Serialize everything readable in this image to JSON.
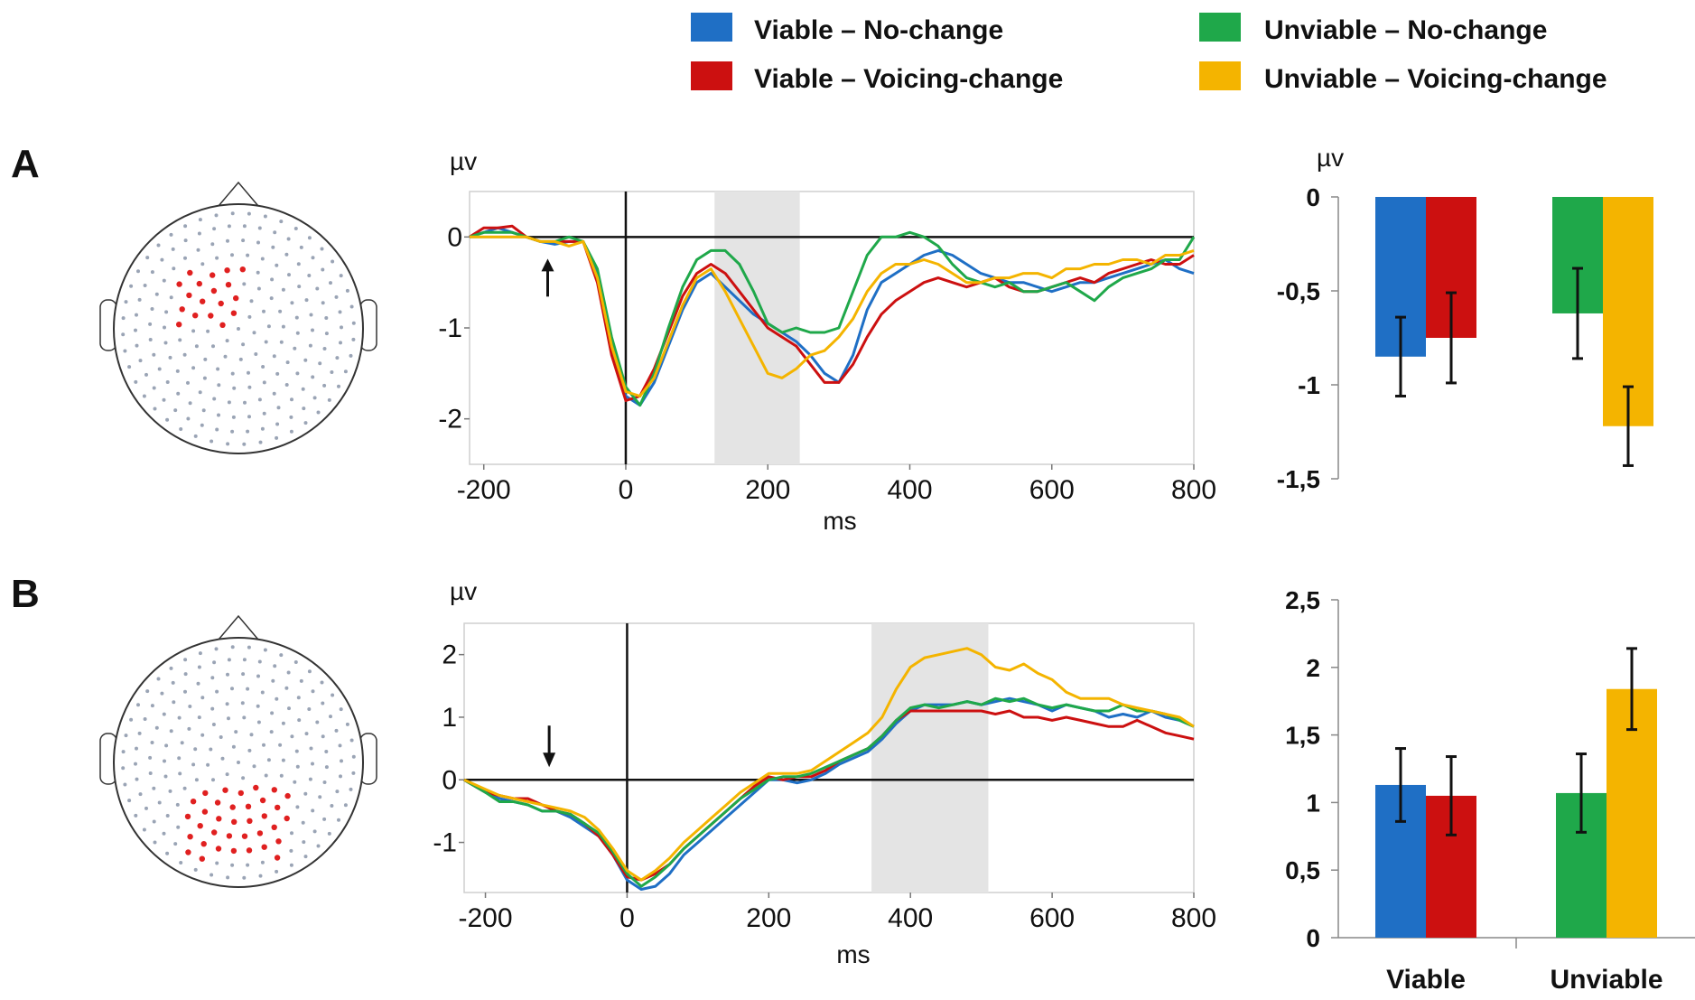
{
  "legend": [
    {
      "label": "Viable – No-change",
      "color": "#1f6fc5"
    },
    {
      "label": "Viable – Voicing-change",
      "color": "#cc1010"
    },
    {
      "label": "Unviable – No-change",
      "color": "#1fa84a"
    },
    {
      "label": "Unviable – Voicing-change",
      "color": "#f4b400"
    }
  ],
  "panels": [
    {
      "letter": "A",
      "wave_unit": "µv",
      "wave_xlabel": "ms",
      "bar_unit": "µv"
    },
    {
      "letter": "B",
      "wave_unit": "µv",
      "wave_xlabel": "ms",
      "bar_unit": ""
    }
  ],
  "chart_data": [
    {
      "id": "A-waveform",
      "type": "line",
      "xlabel": "ms",
      "ylabel": "µv",
      "xlim": [
        -220,
        800
      ],
      "ylim": [
        -2.5,
        0.5
      ],
      "xticks": [
        -200,
        0,
        200,
        400,
        600,
        800
      ],
      "yticks": [
        {
          "v": 0,
          "t": "0"
        },
        {
          "v": -1,
          "t": "-1"
        },
        {
          "v": -2,
          "t": "-2"
        }
      ],
      "shaded_window": [
        125,
        245
      ],
      "arrow": {
        "x": -110,
        "direction": "up"
      },
      "x": [
        -220,
        -200,
        -180,
        -160,
        -140,
        -120,
        -100,
        -80,
        -60,
        -40,
        -20,
        0,
        20,
        40,
        60,
        80,
        100,
        120,
        140,
        160,
        180,
        200,
        220,
        240,
        260,
        280,
        300,
        320,
        340,
        360,
        380,
        400,
        420,
        440,
        460,
        480,
        500,
        520,
        540,
        560,
        580,
        600,
        620,
        640,
        660,
        680,
        700,
        720,
        740,
        760,
        780,
        800
      ],
      "series": [
        {
          "name": "Viable – No-change",
          "color": "#1f6fc5",
          "values": [
            0,
            0.05,
            0.1,
            0.05,
            0,
            -0.05,
            -0.08,
            -0.05,
            -0.05,
            -0.4,
            -1.2,
            -1.75,
            -1.85,
            -1.6,
            -1.2,
            -0.8,
            -0.5,
            -0.4,
            -0.55,
            -0.7,
            -0.85,
            -0.95,
            -1.05,
            -1.15,
            -1.3,
            -1.5,
            -1.6,
            -1.3,
            -0.8,
            -0.5,
            -0.4,
            -0.3,
            -0.2,
            -0.15,
            -0.2,
            -0.3,
            -0.4,
            -0.45,
            -0.5,
            -0.5,
            -0.55,
            -0.6,
            -0.55,
            -0.5,
            -0.5,
            -0.45,
            -0.4,
            -0.35,
            -0.3,
            -0.25,
            -0.35,
            -0.4
          ]
        },
        {
          "name": "Viable – Voicing-change",
          "color": "#cc1010",
          "values": [
            0,
            0.1,
            0.1,
            0.12,
            0,
            -0.05,
            -0.05,
            -0.05,
            -0.05,
            -0.5,
            -1.3,
            -1.8,
            -1.75,
            -1.45,
            -1.05,
            -0.65,
            -0.4,
            -0.3,
            -0.4,
            -0.6,
            -0.8,
            -1.0,
            -1.1,
            -1.2,
            -1.4,
            -1.6,
            -1.6,
            -1.4,
            -1.1,
            -0.85,
            -0.7,
            -0.6,
            -0.5,
            -0.45,
            -0.5,
            -0.55,
            -0.5,
            -0.45,
            -0.55,
            -0.6,
            -0.6,
            -0.55,
            -0.5,
            -0.45,
            -0.5,
            -0.4,
            -0.35,
            -0.3,
            -0.25,
            -0.3,
            -0.3,
            -0.2
          ]
        },
        {
          "name": "Unviable – No-change",
          "color": "#1fa84a",
          "values": [
            0,
            0.05,
            0.05,
            0.05,
            0,
            -0.05,
            -0.05,
            0,
            -0.05,
            -0.35,
            -1.1,
            -1.65,
            -1.85,
            -1.5,
            -1.0,
            -0.55,
            -0.25,
            -0.15,
            -0.15,
            -0.3,
            -0.6,
            -0.95,
            -1.05,
            -1.0,
            -1.05,
            -1.05,
            -1.0,
            -0.6,
            -0.2,
            0,
            0,
            0.05,
            0,
            -0.1,
            -0.3,
            -0.45,
            -0.5,
            -0.55,
            -0.5,
            -0.6,
            -0.6,
            -0.55,
            -0.5,
            -0.6,
            -0.7,
            -0.55,
            -0.45,
            -0.4,
            -0.35,
            -0.25,
            -0.25,
            0
          ]
        },
        {
          "name": "Unviable – Voicing-change",
          "color": "#f4b400",
          "values": [
            0,
            0,
            0,
            0,
            0,
            -0.05,
            -0.05,
            -0.1,
            -0.05,
            -0.45,
            -1.2,
            -1.7,
            -1.75,
            -1.55,
            -1.15,
            -0.75,
            -0.45,
            -0.35,
            -0.6,
            -0.9,
            -1.2,
            -1.5,
            -1.55,
            -1.45,
            -1.3,
            -1.25,
            -1.1,
            -0.9,
            -0.6,
            -0.4,
            -0.3,
            -0.3,
            -0.25,
            -0.3,
            -0.4,
            -0.5,
            -0.5,
            -0.45,
            -0.45,
            -0.4,
            -0.4,
            -0.45,
            -0.35,
            -0.35,
            -0.3,
            -0.3,
            -0.25,
            -0.25,
            -0.3,
            -0.2,
            -0.2,
            -0.15
          ]
        }
      ]
    },
    {
      "id": "A-bars",
      "type": "bar",
      "ylabel": "µv",
      "ylim": [
        -1.5,
        0
      ],
      "yticks": [
        {
          "v": 0,
          "t": "0"
        },
        {
          "v": -0.5,
          "t": "-0,5"
        },
        {
          "v": -1,
          "t": "-1"
        },
        {
          "v": -1.5,
          "t": "-1,5"
        }
      ],
      "groups": [
        "Viable",
        "Unviable"
      ],
      "show_group_labels": false,
      "bars": [
        {
          "group": 0,
          "series": "Viable – No-change",
          "color": "#1f6fc5",
          "value": -0.85,
          "err": 0.21
        },
        {
          "group": 0,
          "series": "Viable – Voicing-change",
          "color": "#cc1010",
          "value": -0.75,
          "err": 0.24
        },
        {
          "group": 1,
          "series": "Unviable – No-change",
          "color": "#1fa84a",
          "value": -0.62,
          "err": 0.24
        },
        {
          "group": 1,
          "series": "Unviable – Voicing-change",
          "color": "#f4b400",
          "value": -1.22,
          "err": 0.21
        }
      ]
    },
    {
      "id": "B-waveform",
      "type": "line",
      "xlabel": "ms",
      "ylabel": "µv",
      "xlim": [
        -230,
        800
      ],
      "ylim": [
        -1.8,
        2.5
      ],
      "xticks": [
        -200,
        0,
        200,
        400,
        600,
        800
      ],
      "yticks": [
        {
          "v": 2,
          "t": "2"
        },
        {
          "v": 1,
          "t": "1"
        },
        {
          "v": 0,
          "t": "0"
        },
        {
          "v": -1,
          "t": "-1"
        }
      ],
      "shaded_window": [
        345,
        510
      ],
      "arrow": {
        "x": -110,
        "direction": "down"
      },
      "x": [
        -230,
        -200,
        -180,
        -160,
        -140,
        -120,
        -100,
        -80,
        -60,
        -40,
        -20,
        0,
        20,
        40,
        60,
        80,
        100,
        120,
        140,
        160,
        180,
        200,
        220,
        240,
        260,
        280,
        300,
        320,
        340,
        360,
        380,
        400,
        420,
        440,
        460,
        480,
        500,
        520,
        540,
        560,
        580,
        600,
        620,
        640,
        660,
        680,
        700,
        720,
        740,
        760,
        780,
        800
      ],
      "series": [
        {
          "name": "Viable – No-change",
          "color": "#1f6fc5",
          "values": [
            0,
            -0.2,
            -0.3,
            -0.35,
            -0.4,
            -0.5,
            -0.5,
            -0.6,
            -0.75,
            -0.9,
            -1.2,
            -1.6,
            -1.75,
            -1.7,
            -1.5,
            -1.2,
            -1.0,
            -0.8,
            -0.6,
            -0.4,
            -0.2,
            0,
            0,
            -0.05,
            0,
            0.1,
            0.25,
            0.35,
            0.45,
            0.65,
            0.9,
            1.1,
            1.2,
            1.2,
            1.2,
            1.25,
            1.2,
            1.25,
            1.3,
            1.25,
            1.2,
            1.1,
            1.2,
            1.15,
            1.1,
            1.0,
            1.05,
            1.0,
            1.1,
            1.0,
            0.95,
            0.85
          ]
        },
        {
          "name": "Viable – Voicing-change",
          "color": "#cc1010",
          "values": [
            0,
            -0.2,
            -0.25,
            -0.3,
            -0.3,
            -0.4,
            -0.5,
            -0.55,
            -0.7,
            -0.9,
            -1.2,
            -1.55,
            -1.6,
            -1.5,
            -1.35,
            -1.1,
            -0.9,
            -0.7,
            -0.5,
            -0.3,
            -0.1,
            0.05,
            0,
            0.05,
            0.05,
            0.15,
            0.3,
            0.4,
            0.5,
            0.7,
            0.95,
            1.1,
            1.1,
            1.1,
            1.1,
            1.1,
            1.1,
            1.05,
            1.1,
            1.0,
            1.0,
            0.95,
            1.0,
            0.95,
            0.9,
            0.85,
            0.85,
            0.95,
            0.85,
            0.75,
            0.7,
            0.65
          ]
        },
        {
          "name": "Unviable – No-change",
          "color": "#1fa84a",
          "values": [
            0,
            -0.2,
            -0.35,
            -0.35,
            -0.4,
            -0.5,
            -0.5,
            -0.55,
            -0.7,
            -0.85,
            -1.15,
            -1.5,
            -1.7,
            -1.55,
            -1.35,
            -1.1,
            -0.9,
            -0.7,
            -0.5,
            -0.3,
            -0.15,
            0,
            0.05,
            0.05,
            0.1,
            0.2,
            0.3,
            0.4,
            0.5,
            0.7,
            0.95,
            1.15,
            1.2,
            1.15,
            1.2,
            1.25,
            1.2,
            1.3,
            1.25,
            1.3,
            1.2,
            1.15,
            1.2,
            1.15,
            1.1,
            1.1,
            1.2,
            1.1,
            1.1,
            1.05,
            0.95,
            0.85
          ]
        },
        {
          "name": "Unviable – Voicing-change",
          "color": "#f4b400",
          "values": [
            0,
            -0.15,
            -0.25,
            -0.3,
            -0.35,
            -0.4,
            -0.45,
            -0.5,
            -0.6,
            -0.8,
            -1.1,
            -1.45,
            -1.6,
            -1.45,
            -1.25,
            -1.0,
            -0.8,
            -0.6,
            -0.4,
            -0.2,
            -0.05,
            0.1,
            0.1,
            0.1,
            0.15,
            0.3,
            0.45,
            0.6,
            0.75,
            1.0,
            1.45,
            1.8,
            1.95,
            2.0,
            2.05,
            2.1,
            2.0,
            1.8,
            1.75,
            1.85,
            1.7,
            1.6,
            1.4,
            1.3,
            1.3,
            1.3,
            1.2,
            1.15,
            1.1,
            1.05,
            1.0,
            0.85
          ]
        }
      ]
    },
    {
      "id": "B-bars",
      "type": "bar",
      "ylabel": "",
      "ylim": [
        0,
        2.5
      ],
      "yticks": [
        {
          "v": 2.5,
          "t": "2,5"
        },
        {
          "v": 2,
          "t": "2"
        },
        {
          "v": 1.5,
          "t": "1,5"
        },
        {
          "v": 1,
          "t": "1"
        },
        {
          "v": 0.5,
          "t": "0,5"
        },
        {
          "v": 0,
          "t": "0"
        }
      ],
      "groups": [
        "Viable",
        "Unviable"
      ],
      "show_group_labels": true,
      "bars": [
        {
          "group": 0,
          "series": "Viable – No-change",
          "color": "#1f6fc5",
          "value": 1.13,
          "err": 0.27
        },
        {
          "group": 0,
          "series": "Viable – Voicing-change",
          "color": "#cc1010",
          "value": 1.05,
          "err": 0.29
        },
        {
          "group": 1,
          "series": "Unviable – No-change",
          "color": "#1fa84a",
          "value": 1.07,
          "err": 0.29
        },
        {
          "group": 1,
          "series": "Unviable – Voicing-change",
          "color": "#f4b400",
          "value": 1.84,
          "err": 0.3
        }
      ]
    }
  ]
}
